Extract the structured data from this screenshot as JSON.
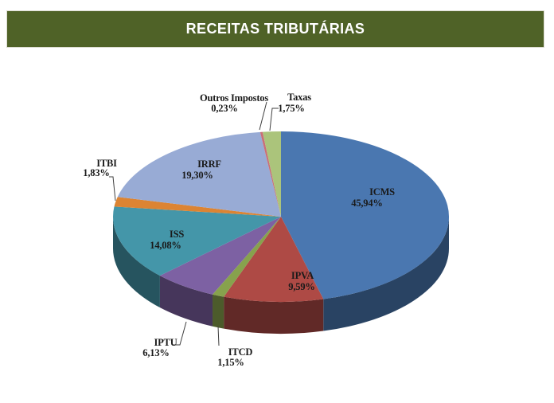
{
  "header": {
    "title": "RECEITAS TRIBUTÁRIAS"
  },
  "colors": {
    "header_bg": "#4F6227",
    "header_text": "#FFFFFF",
    "label_text": "#1A1A1A",
    "leader_line": "#3F3F3F"
  },
  "chart_data": {
    "type": "pie",
    "projection": "3d",
    "title": "RECEITAS TRIBUTÁRIAS",
    "legend": "none",
    "start_angle_deg": 0,
    "direction": "clockwise",
    "value_format": "percent, pt-BR comma decimal",
    "slices": [
      {
        "label": "ICMS",
        "pct": 45.94,
        "pct_label": "45,94%",
        "color": "#4A77B0"
      },
      {
        "label": "IPVA",
        "pct": 9.59,
        "pct_label": "9,59%",
        "color": "#AE4A45"
      },
      {
        "label": "ITCD",
        "pct": 1.15,
        "pct_label": "1,15%",
        "color": "#87A24D"
      },
      {
        "label": "IPTU",
        "pct": 6.13,
        "pct_label": "6,13%",
        "color": "#7D61A3"
      },
      {
        "label": "ISS",
        "pct": 14.08,
        "pct_label": "14,08%",
        "color": "#4496A9"
      },
      {
        "label": "ITBI",
        "pct": 1.83,
        "pct_label": "1,83%",
        "color": "#DC8433"
      },
      {
        "label": "IRRF",
        "pct": 19.3,
        "pct_label": "19,30%",
        "color": "#98ABD5"
      },
      {
        "label": "Outros Impostos",
        "pct": 0.23,
        "pct_label": "0,23%",
        "color": "#C96F77"
      },
      {
        "label": "Taxas",
        "pct": 1.75,
        "pct_label": "1,75%",
        "color": "#ABC47B"
      }
    ]
  }
}
